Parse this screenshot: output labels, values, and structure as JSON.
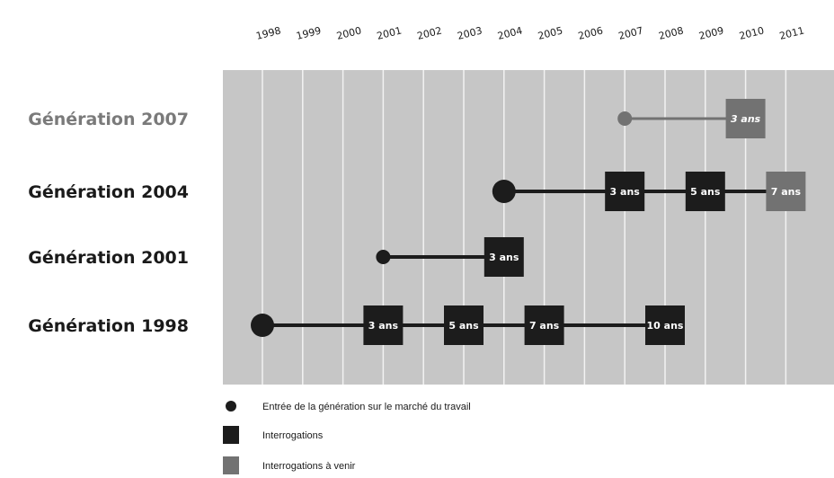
{
  "years": [
    "1998",
    "1999",
    "2000",
    "2001",
    "2002",
    "2003",
    "2004",
    "2005",
    "2006",
    "2007",
    "2008",
    "2009",
    "2010",
    "2011"
  ],
  "generations": [
    {
      "label": "Génération 2007",
      "upcoming": true,
      "entry_year": 2007,
      "end_year": 2010,
      "surveys": [
        {
          "year": 2010,
          "label": "3 ans",
          "upcoming": true
        }
      ]
    },
    {
      "label": "Génération 2004",
      "upcoming": false,
      "entry_year": 2004,
      "end_year": 2011,
      "surveys": [
        {
          "year": 2007,
          "label": "3 ans",
          "upcoming": false
        },
        {
          "year": 2009,
          "label": "5 ans",
          "upcoming": false
        },
        {
          "year": 2011,
          "label": "7 ans",
          "upcoming": true
        }
      ]
    },
    {
      "label": "Génération 2001",
      "upcoming": false,
      "entry_year": 2001,
      "end_year": 2004,
      "surveys": [
        {
          "year": 2004,
          "label": "3 ans",
          "upcoming": false
        }
      ]
    },
    {
      "label": "Génération 1998",
      "upcoming": false,
      "entry_year": 1998,
      "end_year": 2008,
      "surveys": [
        {
          "year": 2001,
          "label": "3 ans",
          "upcoming": false
        },
        {
          "year": 2003,
          "label": "5 ans",
          "upcoming": false
        },
        {
          "year": 2005,
          "label": "7 ans",
          "upcoming": false
        },
        {
          "year": 2008,
          "label": "10 ans",
          "upcoming": false
        }
      ]
    }
  ],
  "legend": [
    {
      "type": "dot",
      "label": "Entrée de la génération sur le marché du travail"
    },
    {
      "type": "box",
      "label": "Interrogations"
    },
    {
      "type": "box-upcoming",
      "label": "Interrogations à venir"
    }
  ],
  "colors": {
    "panel": "#c6c6c6",
    "gridline": "#f2f2f2",
    "done": "#1c1c1c",
    "upcoming": "#727272",
    "upcoming_label": "#7a7a7a",
    "done_label": "#1a1a1a"
  }
}
